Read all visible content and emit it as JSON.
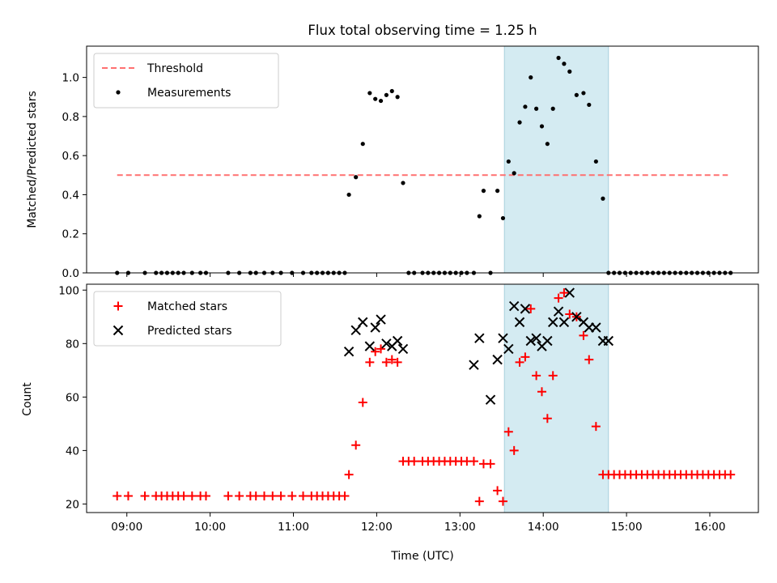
{
  "chart_data": [
    {
      "type": "scatter",
      "title": "Flux total observing time = 1.25 h",
      "xlabel": "",
      "ylabel": "Matched/Predicted stars",
      "xlim": [
        "08:31",
        "16:35"
      ],
      "ylim": [
        0,
        1.16
      ],
      "yticks": [
        0.0,
        0.2,
        0.4,
        0.6,
        0.8,
        1.0
      ],
      "ytick_labels": [
        "0.0",
        "0.2",
        "0.4",
        "0.6",
        "0.8",
        "1.0"
      ],
      "xticks": [
        "09:00",
        "10:00",
        "11:00",
        "12:00",
        "13:00",
        "14:00",
        "15:00",
        "16:00"
      ],
      "shaded_span": [
        "13:32",
        "14:47"
      ],
      "legend": {
        "placement": "upper left",
        "entries": [
          "Threshold",
          "Measurements"
        ]
      },
      "series": [
        {
          "name": "Threshold",
          "kind": "dashed-line",
          "color": "#ff7070",
          "x": [
            "08:53",
            "16:13"
          ],
          "y": [
            0.5,
            0.5
          ]
        },
        {
          "name": "Measurements",
          "kind": "dots",
          "color": "#000000",
          "x": [
            "08:53",
            "09:01",
            "09:13",
            "09:21",
            "09:25",
            "09:29",
            "09:33",
            "09:37",
            "09:41",
            "09:47",
            "09:53",
            "09:57",
            "10:13",
            "10:21",
            "10:29",
            "10:33",
            "10:39",
            "10:45",
            "10:51",
            "10:59",
            "11:07",
            "11:13",
            "11:17",
            "11:21",
            "11:25",
            "11:29",
            "11:33",
            "11:37",
            "11:40",
            "11:45",
            "11:50",
            "11:55",
            "11:59",
            "12:03",
            "12:07",
            "12:11",
            "12:15",
            "12:19",
            "12:23",
            "12:27",
            "12:33",
            "12:37",
            "12:41",
            "12:45",
            "12:49",
            "12:53",
            "12:57",
            "13:01",
            "13:05",
            "13:10",
            "13:14",
            "13:17",
            "13:22",
            "13:27",
            "13:31",
            "13:35",
            "13:39",
            "13:43",
            "13:47",
            "13:51",
            "13:55",
            "13:59",
            "14:03",
            "14:07",
            "14:11",
            "14:15",
            "14:19",
            "14:24",
            "14:29",
            "14:33",
            "14:38",
            "14:43",
            "14:47",
            "14:51",
            "14:55",
            "14:59",
            "15:03",
            "15:07",
            "15:11",
            "15:15",
            "15:19",
            "15:23",
            "15:27",
            "15:31",
            "15:35",
            "15:39",
            "15:43",
            "15:47",
            "15:51",
            "15:55",
            "15:59",
            "16:03",
            "16:07",
            "16:11",
            "16:15"
          ],
          "y": [
            0,
            0,
            0,
            0,
            0,
            0,
            0,
            0,
            0,
            0,
            0,
            0,
            0,
            0,
            0,
            0,
            0,
            0,
            0,
            0,
            0,
            0,
            0,
            0,
            0,
            0,
            0,
            0,
            0.4,
            0.49,
            0.66,
            0.92,
            0.89,
            0.88,
            0.91,
            0.93,
            0.9,
            0.46,
            0,
            0,
            0,
            0,
            0,
            0,
            0,
            0,
            0,
            0,
            0,
            0,
            0.29,
            0.42,
            0,
            0.42,
            0.28,
            0.57,
            0.51,
            0.77,
            0.85,
            1.0,
            0.84,
            0.75,
            0.66,
            0.84,
            1.1,
            1.07,
            1.03,
            0.91,
            0.92,
            0.86,
            0.57,
            0.38,
            0,
            0,
            0,
            0,
            0,
            0,
            0,
            0,
            0,
            0,
            0,
            0,
            0,
            0,
            0,
            0,
            0,
            0,
            0,
            0,
            0,
            0,
            0
          ]
        }
      ]
    },
    {
      "type": "scatter",
      "xlabel": "Time (UTC)",
      "ylabel": "Count",
      "xlim": [
        "08:31",
        "16:35"
      ],
      "ylim": [
        16.8,
        102.2
      ],
      "yticks": [
        20,
        40,
        60,
        80,
        100
      ],
      "ytick_labels": [
        "20",
        "40",
        "60",
        "80",
        "100"
      ],
      "xticks": [
        "09:00",
        "10:00",
        "11:00",
        "12:00",
        "13:00",
        "14:00",
        "15:00",
        "16:00"
      ],
      "xtick_labels": [
        "09:00",
        "10:00",
        "11:00",
        "12:00",
        "13:00",
        "14:00",
        "15:00",
        "16:00"
      ],
      "shaded_span": [
        "13:32",
        "14:47"
      ],
      "legend": {
        "placement": "upper left",
        "entries": [
          "Matched stars",
          "Predicted stars"
        ]
      },
      "series": [
        {
          "name": "Matched stars",
          "kind": "plus",
          "color": "#ff0000",
          "x": [
            "08:53",
            "09:01",
            "09:13",
            "09:21",
            "09:25",
            "09:29",
            "09:33",
            "09:37",
            "09:41",
            "09:47",
            "09:53",
            "09:57",
            "10:13",
            "10:21",
            "10:29",
            "10:33",
            "10:39",
            "10:45",
            "10:51",
            "10:59",
            "11:07",
            "11:13",
            "11:17",
            "11:21",
            "11:25",
            "11:29",
            "11:33",
            "11:37",
            "11:40",
            "11:45",
            "11:50",
            "11:55",
            "11:59",
            "12:03",
            "12:07",
            "12:11",
            "12:15",
            "12:19",
            "12:23",
            "12:27",
            "12:33",
            "12:37",
            "12:41",
            "12:45",
            "12:49",
            "12:53",
            "12:57",
            "13:01",
            "13:05",
            "13:10",
            "13:14",
            "13:17",
            "13:22",
            "13:27",
            "13:31",
            "13:35",
            "13:39",
            "13:43",
            "13:47",
            "13:51",
            "13:55",
            "13:59",
            "14:03",
            "14:07",
            "14:11",
            "14:15",
            "14:19",
            "14:24",
            "14:29",
            "14:33",
            "14:38",
            "14:43",
            "14:47",
            "14:51",
            "14:55",
            "14:59",
            "15:03",
            "15:07",
            "15:11",
            "15:15",
            "15:19",
            "15:23",
            "15:27",
            "15:31",
            "15:35",
            "15:39",
            "15:43",
            "15:47",
            "15:51",
            "15:55",
            "15:59",
            "16:03",
            "16:07",
            "16:11",
            "16:15"
          ],
          "y": [
            23,
            23,
            23,
            23,
            23,
            23,
            23,
            23,
            23,
            23,
            23,
            23,
            23,
            23,
            23,
            23,
            23,
            23,
            23,
            23,
            23,
            23,
            23,
            23,
            23,
            23,
            23,
            23,
            31,
            42,
            58,
            73,
            77,
            78,
            73,
            74,
            73,
            36,
            36,
            36,
            36,
            36,
            36,
            36,
            36,
            36,
            36,
            36,
            36,
            36,
            21,
            35,
            35,
            25,
            21,
            47,
            40,
            73,
            75,
            93,
            68,
            62,
            52,
            68,
            97,
            99,
            91,
            90,
            83,
            74,
            49,
            31,
            31,
            31,
            31,
            31,
            31,
            31,
            31,
            31,
            31,
            31,
            31,
            31,
            31,
            31,
            31,
            31,
            31,
            31,
            31,
            31,
            31,
            31,
            31
          ]
        },
        {
          "name": "Predicted stars",
          "kind": "x",
          "color": "#000000",
          "x": [
            "11:40",
            "11:45",
            "11:50",
            "11:55",
            "11:59",
            "12:03",
            "12:07",
            "12:11",
            "12:15",
            "12:19",
            "13:10",
            "13:14",
            "13:22",
            "13:27",
            "13:31",
            "13:35",
            "13:39",
            "13:43",
            "13:47",
            "13:51",
            "13:55",
            "13:59",
            "14:03",
            "14:07",
            "14:11",
            "14:15",
            "14:19",
            "14:24",
            "14:29",
            "14:33",
            "14:38",
            "14:43",
            "14:47"
          ],
          "y": [
            77,
            85,
            88,
            79,
            86,
            89,
            80,
            79,
            81,
            78,
            72,
            82,
            59,
            74,
            82,
            78,
            94,
            88,
            93,
            81,
            82,
            79,
            81,
            88,
            92,
            88,
            99,
            90,
            88,
            86,
            86,
            81,
            81
          ]
        }
      ]
    }
  ]
}
